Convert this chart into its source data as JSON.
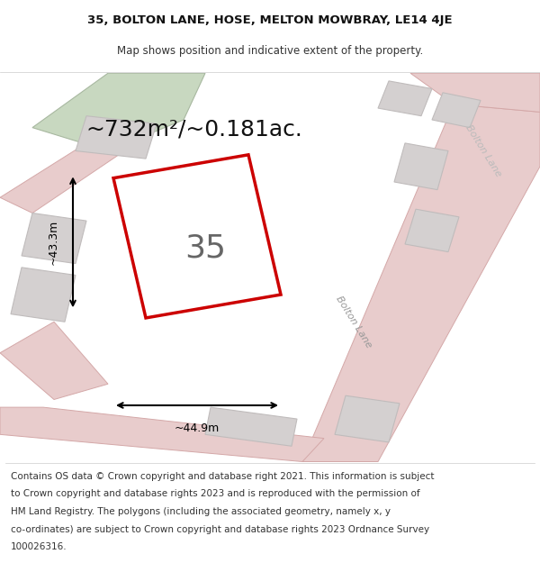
{
  "title_line1": "35, BOLTON LANE, HOSE, MELTON MOWBRAY, LE14 4JE",
  "title_line2": "Map shows position and indicative extent of the property.",
  "area_text": "~732m²/~0.181ac.",
  "property_number": "35",
  "dim_horizontal": "~44.9m",
  "dim_vertical": "~43.3m",
  "road_label_1": "Bolton Lane",
  "road_label_2": "Bolton Lane",
  "footer_lines": [
    "Contains OS data © Crown copyright and database right 2021. This information is subject",
    "to Crown copyright and database rights 2023 and is reproduced with the permission of",
    "HM Land Registry. The polygons (including the associated geometry, namely x, y",
    "co-ordinates) are subject to Crown copyright and database rights 2023 Ordnance Survey",
    "100026316."
  ],
  "map_bg": "#f2eded",
  "road_color": "#e8cccc",
  "road_outline": "#d4a8a8",
  "building_color": "#d4d0d0",
  "building_outline": "#c0bcbc",
  "highlight_color": "#cc0000",
  "green_area_color": "#c8d8c0",
  "green_outline": "#a8b8a0",
  "dimension_color": "#000000",
  "title_fontsize": 9.5,
  "subtitle_fontsize": 8.5,
  "area_fontsize": 18,
  "number_fontsize": 26,
  "dim_fontsize": 9,
  "footer_fontsize": 7.5,
  "road_label_fontsize": 8
}
